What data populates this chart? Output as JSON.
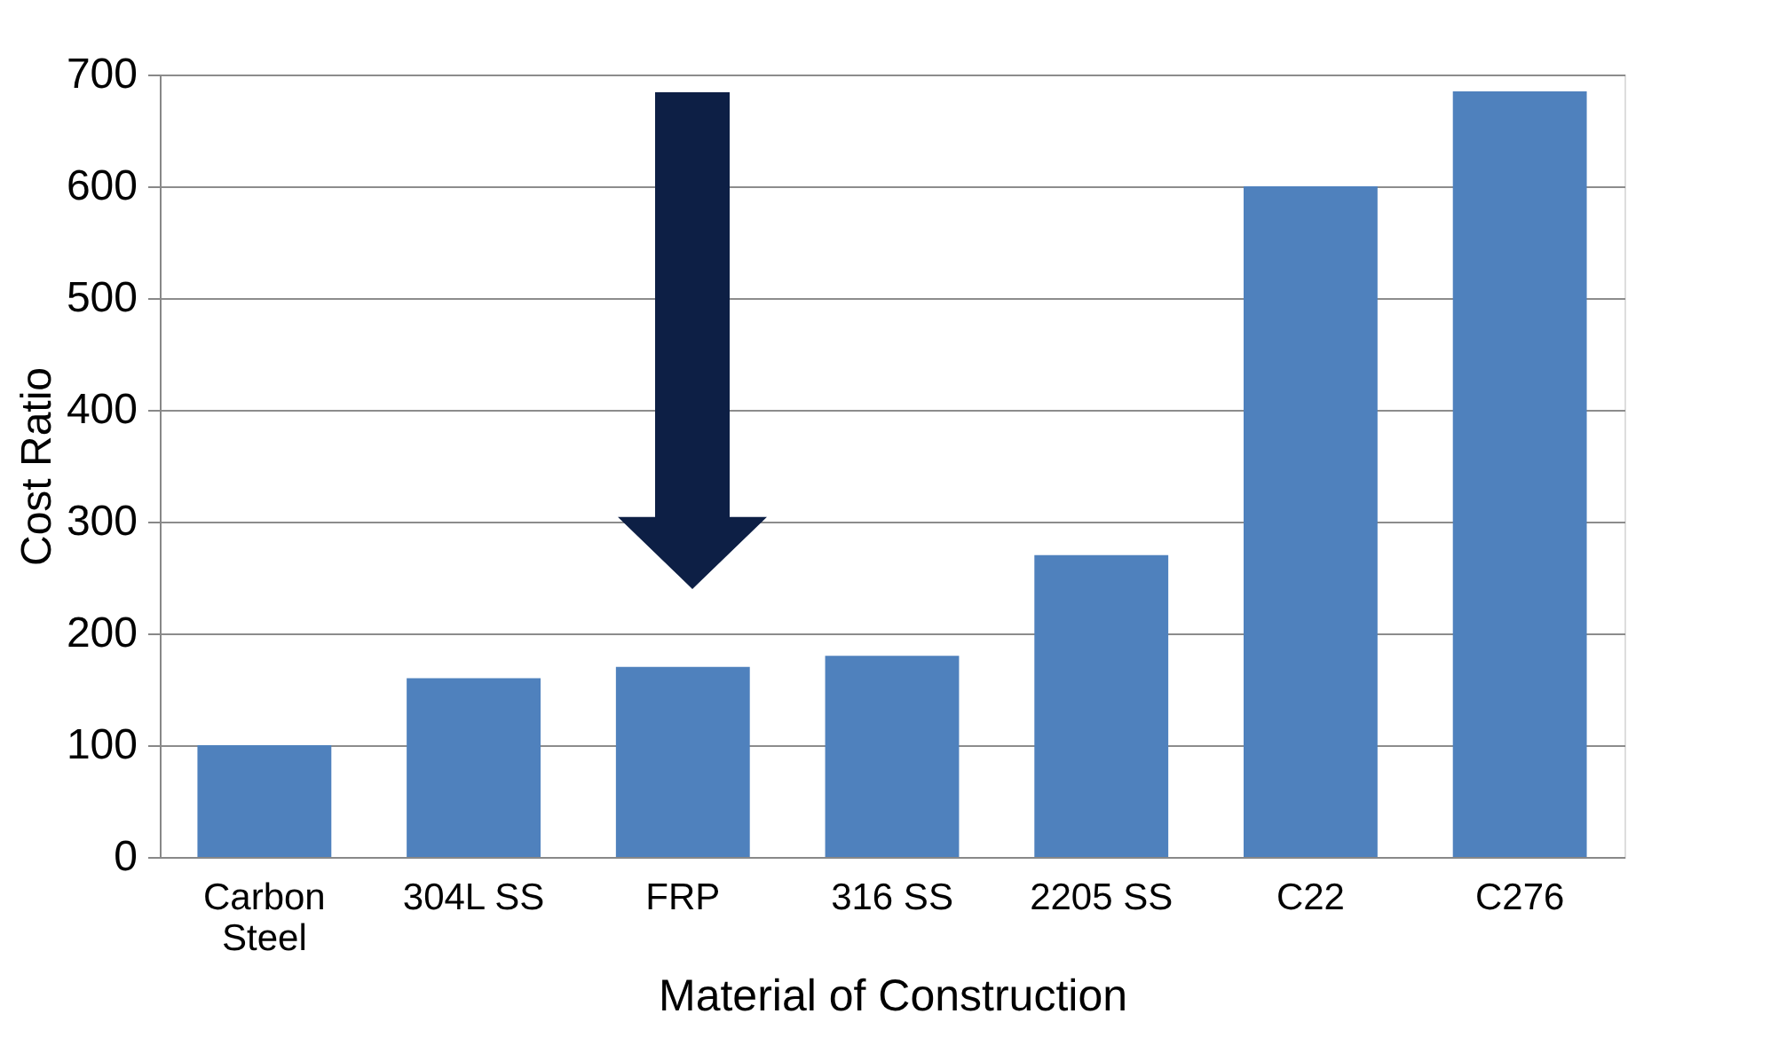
{
  "chart_data": {
    "type": "bar",
    "xlabel": "Material of Construction",
    "ylabel": "Cost Ratio",
    "categories": [
      "Carbon Steel",
      "304L SS",
      "FRP",
      "316 SS",
      "2205 SS",
      "C22",
      "C276"
    ],
    "values": [
      100,
      160,
      170,
      180,
      270,
      600,
      685
    ],
    "color": "#4f81bd",
    "ylim": [
      0,
      700
    ],
    "yticks": [
      0,
      100,
      200,
      300,
      400,
      500,
      600,
      700
    ],
    "grid": "y"
  }
}
